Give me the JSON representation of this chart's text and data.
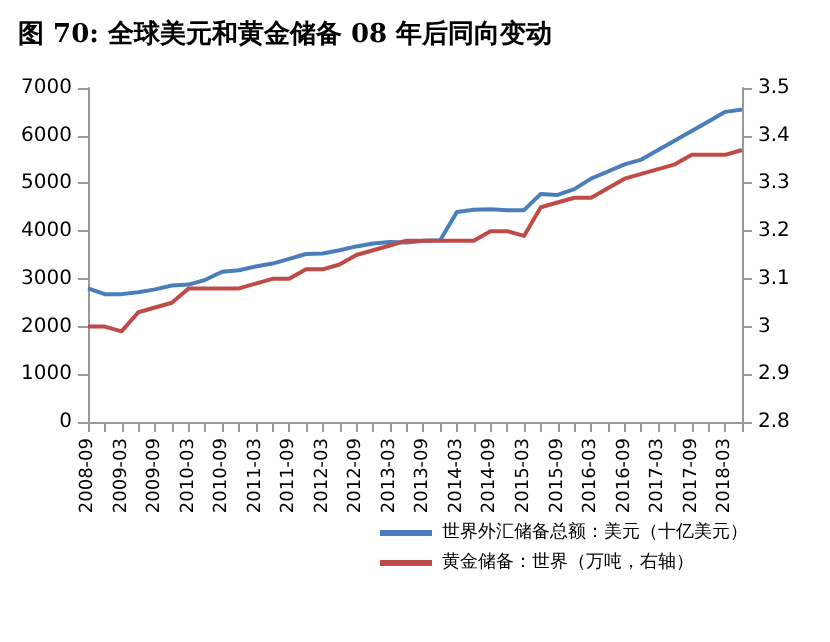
{
  "chart_data": {
    "type": "line",
    "title": "图 70: 全球美元和黄金储备 08 年后同向变动",
    "categories": [
      "2008-09",
      null,
      "2009-03",
      null,
      "2009-09",
      null,
      "2010-03",
      null,
      "2010-09",
      null,
      "2011-03",
      null,
      "2011-09",
      null,
      "2012-03",
      null,
      "2012-09",
      null,
      "2013-03",
      null,
      "2013-09",
      null,
      "2014-03",
      null,
      "2014-09",
      null,
      "2015-03",
      null,
      "2015-09",
      null,
      "2016-03",
      null,
      "2016-09",
      null,
      "2017-03",
      null,
      "2017-09",
      null,
      "2018-03",
      null
    ],
    "series": [
      {
        "name": "世界外汇储备总额：美元（十亿美元）",
        "color": "#4a7ebb",
        "values": [
          2800,
          2680,
          2680,
          2720,
          2780,
          2860,
          2880,
          2980,
          3150,
          3180,
          3260,
          3320,
          3420,
          3520,
          3530,
          3600,
          3680,
          3740,
          3770,
          3760,
          3800,
          3810,
          4400,
          4450,
          4460,
          4440,
          4440,
          4780,
          4760,
          4880,
          5100,
          5250,
          5400,
          5500,
          5700,
          5900,
          6100,
          6300,
          6500,
          6550
        ]
      },
      {
        "name": "黄金储备：世界（万吨，右轴）",
        "color": "#be4b48",
        "axis": "y2",
        "values": [
          3.0,
          3.0,
          2.99,
          3.03,
          3.04,
          3.05,
          3.08,
          3.08,
          3.08,
          3.08,
          3.09,
          3.1,
          3.1,
          3.12,
          3.12,
          3.13,
          3.15,
          3.16,
          3.17,
          3.18,
          3.18,
          3.18,
          3.18,
          3.18,
          3.2,
          3.2,
          3.19,
          3.25,
          3.26,
          3.27,
          3.27,
          3.29,
          3.31,
          3.32,
          3.33,
          3.34,
          3.36,
          3.36,
          3.36,
          3.37
        ]
      }
    ],
    "ylim": [
      0,
      7000
    ],
    "yticks": [
      0,
      1000,
      2000,
      3000,
      4000,
      5000,
      6000,
      7000
    ],
    "y2lim": [
      2.8,
      3.5
    ],
    "y2ticks": [
      2.8,
      2.9,
      3,
      3.1,
      3.2,
      3.3,
      3.4,
      3.5
    ],
    "grid": false,
    "legend": "bottom",
    "marker": "none",
    "line_style": "solid"
  }
}
